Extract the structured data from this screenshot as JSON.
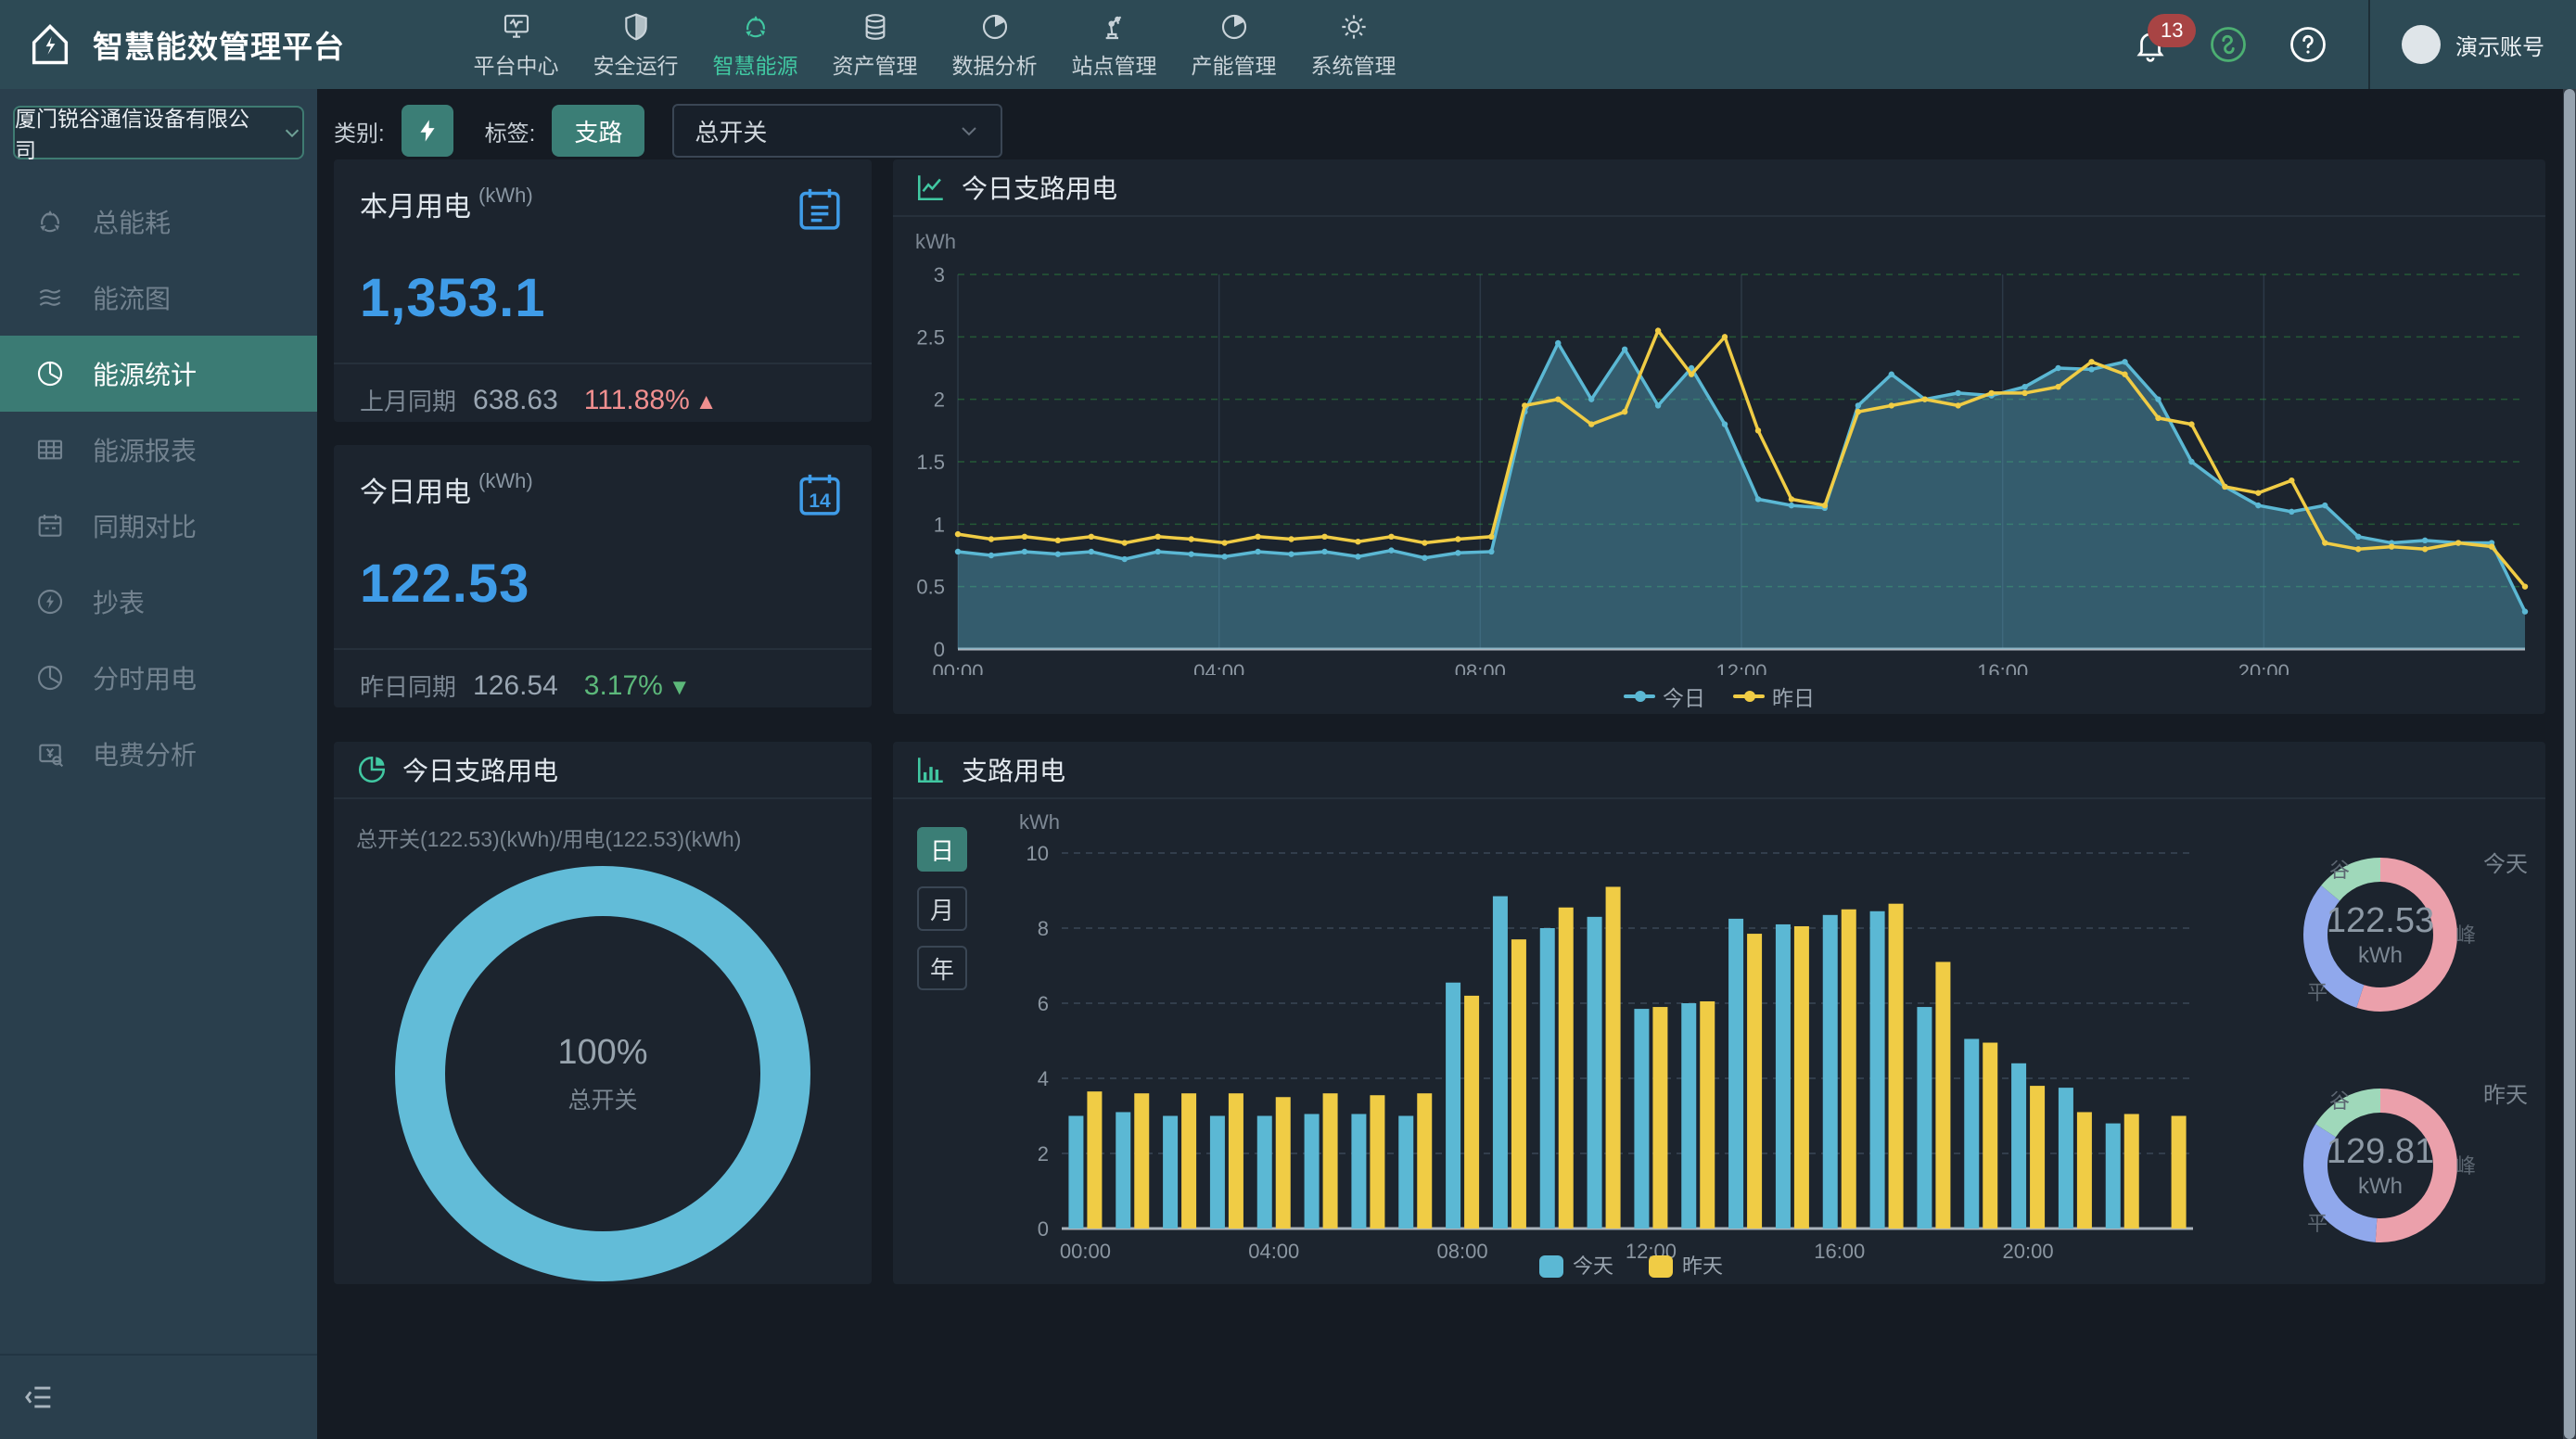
{
  "app": {
    "title": "智慧能效管理平台"
  },
  "topnav": {
    "items": [
      {
        "label": "平台中心",
        "icon": "monitor",
        "active": false
      },
      {
        "label": "安全运行",
        "icon": "shield",
        "active": false
      },
      {
        "label": "智慧能源",
        "icon": "recycle",
        "active": true
      },
      {
        "label": "资产管理",
        "icon": "database",
        "active": false
      },
      {
        "label": "数据分析",
        "icon": "pie",
        "active": false
      },
      {
        "label": "站点管理",
        "icon": "robot-arm",
        "active": false
      },
      {
        "label": "产能管理",
        "icon": "pie",
        "active": false
      },
      {
        "label": "系统管理",
        "icon": "gear",
        "active": false
      }
    ]
  },
  "topbar_right": {
    "badge": "13",
    "account": "演示账号"
  },
  "sidebar": {
    "company": "厦门锐谷通信设备有限公司",
    "items": [
      {
        "label": "总能耗",
        "icon": "recycle",
        "active": false
      },
      {
        "label": "能流图",
        "icon": "flow",
        "active": false
      },
      {
        "label": "能源统计",
        "icon": "pie-clock",
        "active": true
      },
      {
        "label": "能源报表",
        "icon": "table",
        "active": false
      },
      {
        "label": "同期对比",
        "icon": "calendar",
        "active": false
      },
      {
        "label": "抄表",
        "icon": "bolt-circle",
        "active": false
      },
      {
        "label": "分时用电",
        "icon": "pie-clock",
        "active": false
      },
      {
        "label": "电费分析",
        "icon": "doc-yen",
        "active": false
      }
    ]
  },
  "filterbar": {
    "category_label": "类别:",
    "tag_label": "标签:",
    "tag_button": "支路",
    "switch_select": "总开关"
  },
  "cards": {
    "month": {
      "title": "本月用电",
      "unit": "(kWh)",
      "value": "1,353.1",
      "compare_label": "上月同期",
      "compare_value": "638.63",
      "percent": "111.88%",
      "trend_up": "▲"
    },
    "day": {
      "title": "今日用电",
      "unit": "(kWh)",
      "value": "122.53",
      "compare_label": "昨日同期",
      "compare_value": "126.54",
      "percent": "3.17%",
      "trend_down": "▼",
      "calendar_day": "14"
    },
    "donut": {
      "title": "今日支路用电",
      "subtitle": "总开关(122.53)(kWh)/用电(122.53)(kWh)",
      "center_percent": "100%",
      "center_label": "总开关"
    },
    "line": {
      "title": "今日支路用电"
    },
    "bar": {
      "title": "支路用电",
      "period_buttons": [
        "日",
        "月",
        "年"
      ],
      "active_period": "日"
    }
  },
  "colors": {
    "accent_green": "#41c8a2",
    "blue_number": "#3f9ce8",
    "chart_blue": "#5bb8d4",
    "chart_yellow": "#f0cc45",
    "donut_blue": "#62bcd8",
    "peak_pink": "#eba0ab",
    "flat_blue": "#90a8ec",
    "valley_green": "#9fd8ba",
    "up_red": "#f08f8f",
    "down_green": "#5cb87a",
    "badge_red": "#a84444"
  },
  "chart_data": [
    {
      "id": "line_today",
      "type": "line",
      "title": "今日支路用电",
      "ylabel": "kWh",
      "x_labels": [
        "00:00",
        "04:00",
        "08:00",
        "12:00",
        "16:00",
        "20:00"
      ],
      "x_span_hours": 24,
      "ylim": [
        0,
        3
      ],
      "yticks": [
        0,
        0.5,
        1,
        1.5,
        2,
        2.5,
        3
      ],
      "legend_position": "bottom",
      "grid": true,
      "series": [
        {
          "name": "今日",
          "color": "#5bb8d4",
          "area": true,
          "values": [
            0.78,
            0.75,
            0.78,
            0.76,
            0.78,
            0.72,
            0.78,
            0.76,
            0.74,
            0.78,
            0.76,
            0.78,
            0.74,
            0.79,
            0.73,
            0.77,
            0.78,
            1.9,
            2.45,
            2.0,
            2.4,
            1.95,
            2.25,
            1.8,
            1.2,
            1.15,
            1.13,
            1.95,
            2.2,
            2.0,
            2.05,
            2.03,
            2.1,
            2.25,
            2.24,
            2.3,
            2.0,
            1.5,
            1.3,
            1.15,
            1.1,
            1.15,
            0.9,
            0.85,
            0.87,
            0.85,
            0.85,
            0.3
          ]
        },
        {
          "name": "昨日",
          "color": "#f0cc45",
          "area": false,
          "values": [
            0.92,
            0.88,
            0.9,
            0.87,
            0.9,
            0.85,
            0.9,
            0.88,
            0.85,
            0.9,
            0.88,
            0.9,
            0.86,
            0.9,
            0.85,
            0.88,
            0.9,
            1.95,
            2.0,
            1.8,
            1.9,
            2.55,
            2.2,
            2.5,
            1.75,
            1.2,
            1.15,
            1.9,
            1.95,
            2.0,
            1.95,
            2.05,
            2.05,
            2.1,
            2.3,
            2.2,
            1.85,
            1.8,
            1.3,
            1.25,
            1.35,
            0.85,
            0.8,
            0.82,
            0.8,
            0.85,
            0.82,
            0.5
          ]
        }
      ]
    },
    {
      "id": "bar_branch",
      "type": "bar",
      "title": "支路用电",
      "ylabel": "kWh",
      "categories": [
        "00:00",
        "01:00",
        "02:00",
        "03:00",
        "04:00",
        "05:00",
        "06:00",
        "07:00",
        "08:00",
        "09:00",
        "10:00",
        "11:00",
        "12:00",
        "13:00",
        "14:00",
        "15:00",
        "16:00",
        "17:00",
        "18:00",
        "19:00",
        "20:00",
        "21:00",
        "22:00",
        "23:00"
      ],
      "x_labels": [
        "00:00",
        "04:00",
        "08:00",
        "12:00",
        "16:00",
        "20:00"
      ],
      "ylim": [
        0,
        10
      ],
      "yticks": [
        0,
        2,
        4,
        6,
        8,
        10
      ],
      "legend_position": "bottom",
      "grid": true,
      "series": [
        {
          "name": "今天",
          "color": "#5bb8d4",
          "values": [
            3.0,
            3.1,
            3.0,
            3.0,
            3.0,
            3.05,
            3.05,
            3.0,
            6.55,
            8.85,
            8.0,
            8.3,
            5.85,
            6.0,
            8.25,
            8.1,
            8.35,
            8.45,
            5.9,
            5.05,
            4.4,
            3.75,
            2.8,
            0
          ]
        },
        {
          "name": "昨天",
          "color": "#f0cc45",
          "values": [
            3.65,
            3.6,
            3.6,
            3.6,
            3.5,
            3.6,
            3.55,
            3.6,
            6.2,
            7.7,
            8.55,
            9.1,
            5.9,
            6.05,
            7.85,
            8.05,
            8.5,
            8.65,
            7.1,
            4.95,
            3.8,
            3.1,
            3.05,
            3.0
          ]
        }
      ]
    },
    {
      "id": "donut_total",
      "type": "pie",
      "center_percent": "100%",
      "center_label": "总开关",
      "slices": [
        {
          "name": "总开关",
          "pct": 100,
          "color": "#62bcd8"
        }
      ]
    },
    {
      "id": "donut_today",
      "type": "pie",
      "tag": "今天",
      "center_value": "122.53",
      "center_unit": "kWh",
      "slices": [
        {
          "name": "峰",
          "pct": 55,
          "color": "#eba0ab"
        },
        {
          "name": "平",
          "pct": 31,
          "color": "#90a8ec"
        },
        {
          "name": "谷",
          "pct": 14,
          "color": "#9fd8ba"
        }
      ]
    },
    {
      "id": "donut_yesterday",
      "type": "pie",
      "tag": "昨天",
      "center_value": "129.81",
      "center_unit": "kWh",
      "slices": [
        {
          "name": "峰",
          "pct": 51,
          "color": "#eba0ab"
        },
        {
          "name": "平",
          "pct": 33,
          "color": "#90a8ec"
        },
        {
          "name": "谷",
          "pct": 16,
          "color": "#9fd8ba"
        }
      ]
    }
  ]
}
